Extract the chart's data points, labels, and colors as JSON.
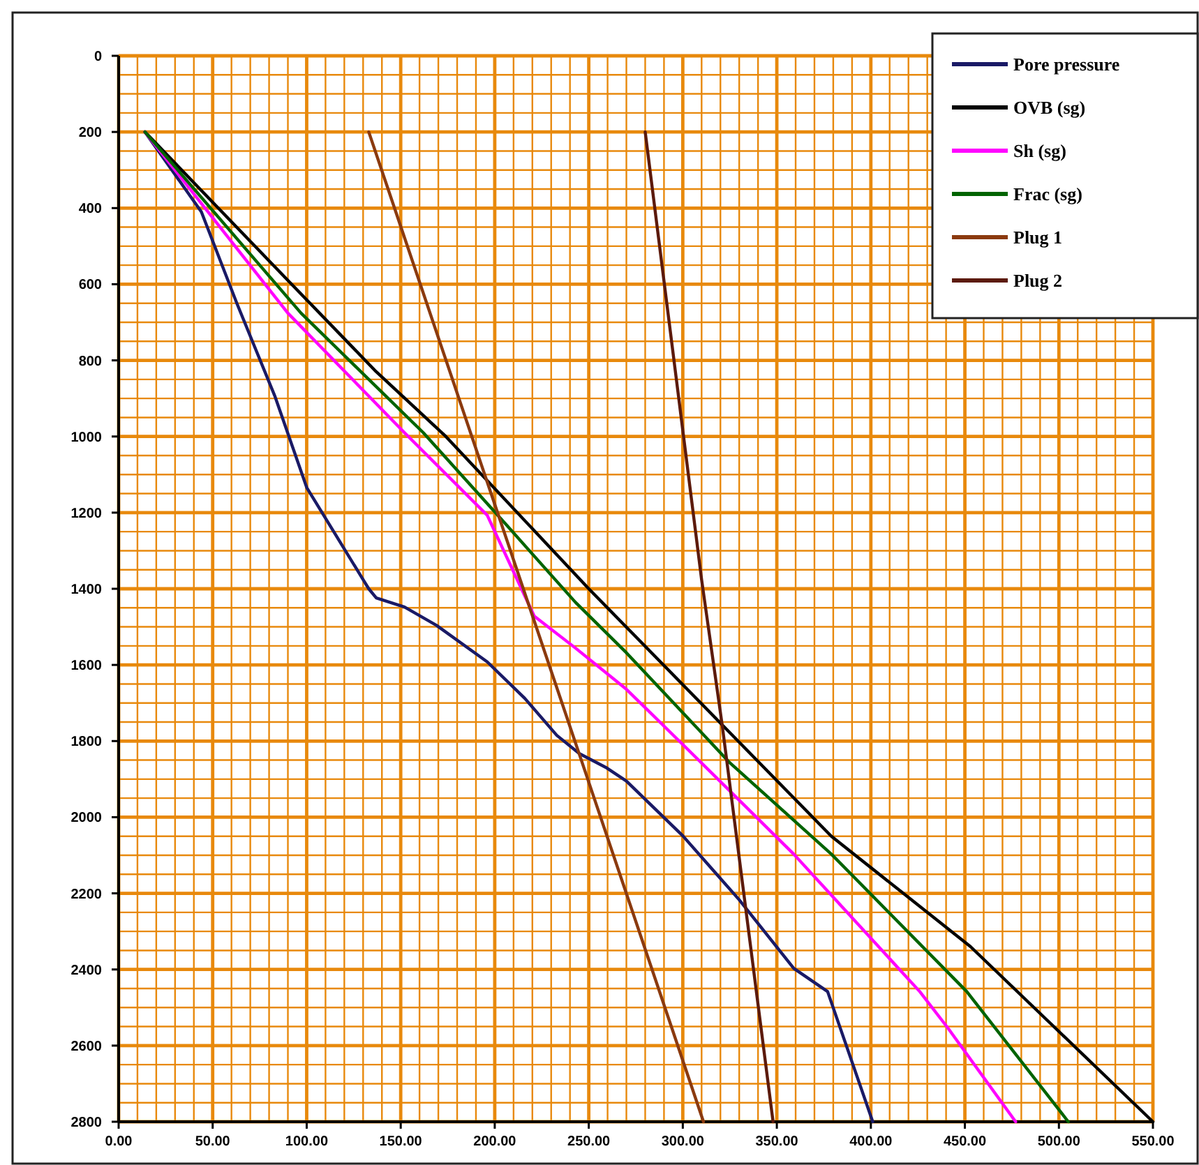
{
  "chart_data": {
    "type": "line",
    "xlim": [
      0,
      550
    ],
    "ylim": [
      2800,
      0
    ],
    "xticks": [
      {
        "value": 0,
        "label": "0.00"
      },
      {
        "value": 10,
        "label": null
      },
      {
        "value": 20,
        "label": null
      },
      {
        "value": 30,
        "label": null
      },
      {
        "value": 40,
        "label": null
      },
      {
        "value": 50,
        "label": "50.00"
      },
      {
        "value": 60,
        "label": null
      },
      {
        "value": 70,
        "label": null
      },
      {
        "value": 80,
        "label": null
      },
      {
        "value": 90,
        "label": null
      },
      {
        "value": 100,
        "label": "100.00"
      },
      {
        "value": 110,
        "label": null
      },
      {
        "value": 120,
        "label": null
      },
      {
        "value": 130,
        "label": null
      },
      {
        "value": 140,
        "label": null
      },
      {
        "value": 150,
        "label": "150.00"
      },
      {
        "value": 160,
        "label": null
      },
      {
        "value": 170,
        "label": null
      },
      {
        "value": 180,
        "label": null
      },
      {
        "value": 190,
        "label": null
      },
      {
        "value": 200,
        "label": "200.00"
      },
      {
        "value": 210,
        "label": null
      },
      {
        "value": 220,
        "label": null
      },
      {
        "value": 230,
        "label": null
      },
      {
        "value": 240,
        "label": null
      },
      {
        "value": 250,
        "label": "250.00"
      },
      {
        "value": 260,
        "label": null
      },
      {
        "value": 270,
        "label": null
      },
      {
        "value": 280,
        "label": null
      },
      {
        "value": 290,
        "label": null
      },
      {
        "value": 300,
        "label": "300.00"
      },
      {
        "value": 310,
        "label": null
      },
      {
        "value": 320,
        "label": null
      },
      {
        "value": 330,
        "label": null
      },
      {
        "value": 340,
        "label": null
      },
      {
        "value": 350,
        "label": "350.00"
      },
      {
        "value": 360,
        "label": null
      },
      {
        "value": 370,
        "label": null
      },
      {
        "value": 380,
        "label": null
      },
      {
        "value": 390,
        "label": null
      },
      {
        "value": 400,
        "label": "400.00"
      },
      {
        "value": 410,
        "label": null
      },
      {
        "value": 420,
        "label": null
      },
      {
        "value": 430,
        "label": null
      },
      {
        "value": 440,
        "label": null
      },
      {
        "value": 450,
        "label": "450.00"
      },
      {
        "value": 460,
        "label": null
      },
      {
        "value": 470,
        "label": null
      },
      {
        "value": 480,
        "label": null
      },
      {
        "value": 490,
        "label": null
      },
      {
        "value": 500,
        "label": "500.00"
      },
      {
        "value": 510,
        "label": null
      },
      {
        "value": 520,
        "label": null
      },
      {
        "value": 530,
        "label": null
      },
      {
        "value": 540,
        "label": null
      },
      {
        "value": 550,
        "label": "550.00"
      }
    ],
    "yticks": [
      0,
      {
        "value": 50,
        "label": null
      },
      {
        "value": 100,
        "label": null
      },
      {
        "value": 150,
        "label": null
      },
      200,
      {
        "value": 250,
        "label": null
      },
      {
        "value": 300,
        "label": null
      },
      {
        "value": 350,
        "label": null
      },
      400,
      {
        "value": 450,
        "label": null
      },
      {
        "value": 500,
        "label": null
      },
      {
        "value": 550,
        "label": null
      },
      600,
      {
        "value": 650,
        "label": null
      },
      {
        "value": 700,
        "label": null
      },
      {
        "value": 750,
        "label": null
      },
      800,
      {
        "value": 850,
        "label": null
      },
      {
        "value": 900,
        "label": null
      },
      {
        "value": 950,
        "label": null
      },
      1000,
      {
        "value": 1050,
        "label": null
      },
      {
        "value": 1100,
        "label": null
      },
      {
        "value": 1150,
        "label": null
      },
      1200,
      {
        "value": 1250,
        "label": null
      },
      {
        "value": 1300,
        "label": null
      },
      {
        "value": 1350,
        "label": null
      },
      1400,
      {
        "value": 1450,
        "label": null
      },
      {
        "value": 1500,
        "label": null
      },
      {
        "value": 1550,
        "label": null
      },
      1600,
      {
        "value": 1650,
        "label": null
      },
      {
        "value": 1700,
        "label": null
      },
      {
        "value": 1750,
        "label": null
      },
      1800,
      {
        "value": 1850,
        "label": null
      },
      {
        "value": 1900,
        "label": null
      },
      {
        "value": 1950,
        "label": null
      },
      2000,
      {
        "value": 2050,
        "label": null
      },
      {
        "value": 2100,
        "label": null
      },
      {
        "value": 2150,
        "label": null
      },
      2200,
      {
        "value": 2250,
        "label": null
      },
      {
        "value": 2300,
        "label": null
      },
      {
        "value": 2350,
        "label": null
      },
      2400,
      {
        "value": 2450,
        "label": null
      },
      {
        "value": 2500,
        "label": null
      },
      {
        "value": 2550,
        "label": null
      },
      2600,
      {
        "value": 2650,
        "label": null
      },
      {
        "value": 2700,
        "label": null
      },
      {
        "value": 2750,
        "label": null
      },
      2800
    ],
    "grid": true,
    "legend": "top right",
    "marker": "none",
    "line_style": "solid",
    "series": [
      {
        "name": "Pore pressure",
        "color": "#1a1a66",
        "x": [
          14,
          44,
          63,
          83,
          100,
          130,
          133,
          137,
          152,
          169,
          196,
          216,
          233,
          245,
          259,
          270,
          300,
          330,
          359,
          377,
          401
        ],
        "values": [
          200,
          410,
          652,
          893,
          1134,
          1376,
          1400,
          1424,
          1448,
          1496,
          1592,
          1688,
          1785,
          1833,
          1869,
          1905,
          2049,
          2217,
          2397,
          2458,
          2800
        ]
      },
      {
        "name": "OVB (sg)",
        "color": "#000000",
        "x": [
          14,
          92,
          137,
          174,
          250,
          379,
          453,
          550
        ],
        "values": [
          200,
          600,
          830,
          1000,
          1400,
          2050,
          2340,
          2800
        ]
      },
      {
        "name": "Sh (sg)",
        "color": "#ff00ff",
        "x": [
          14,
          90,
          152,
          196,
          221,
          243,
          270,
          300,
          359,
          426,
          441,
          477
        ],
        "values": [
          200,
          676,
          990,
          1207,
          1472,
          1556,
          1664,
          1809,
          2097,
          2458,
          2554,
          2800
        ]
      },
      {
        "name": "Frac (sg)",
        "color": "#006400",
        "x": [
          14,
          97,
          162,
          206,
          243,
          270,
          325,
          379,
          451,
          505
        ],
        "values": [
          200,
          676,
          990,
          1231,
          1436,
          1568,
          1857,
          2097,
          2458,
          2800
        ]
      },
      {
        "name": "Plug 1",
        "color": "#8b3a0f",
        "x": [
          133,
          245,
          311
        ],
        "values": [
          200,
          1835,
          2800
        ]
      },
      {
        "name": "Plug 2",
        "color": "#5c1a0c",
        "x": [
          280,
          310,
          321,
          348
        ],
        "values": [
          200,
          1376,
          1760,
          2800
        ]
      }
    ]
  }
}
